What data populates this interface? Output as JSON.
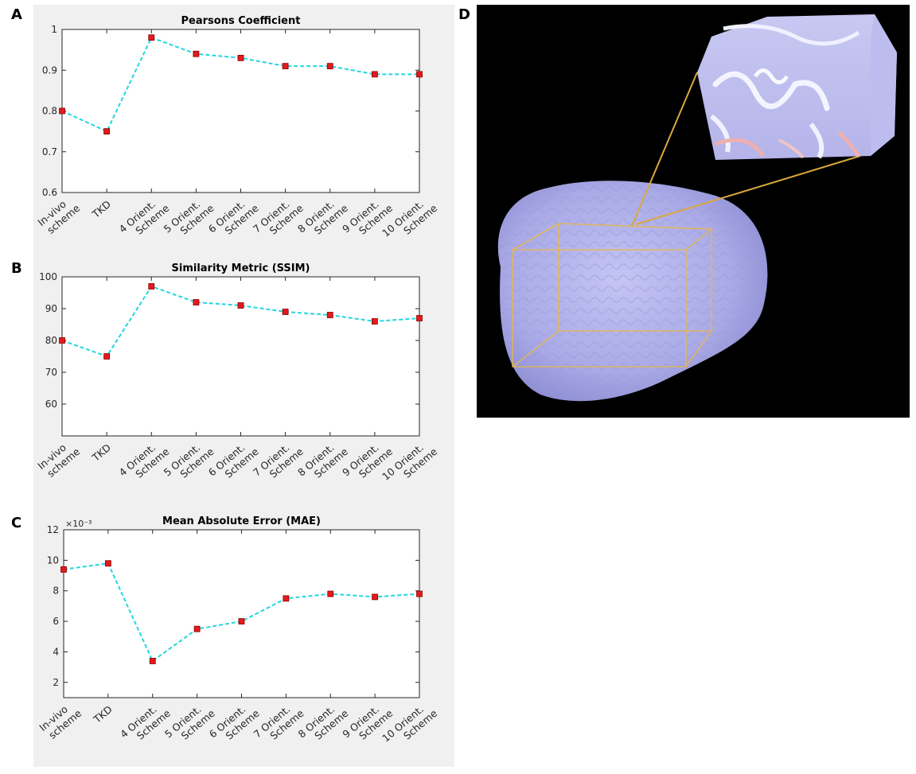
{
  "figure": {
    "panel_labels": [
      "A",
      "B",
      "C",
      "D"
    ]
  },
  "chart_data": [
    {
      "type": "line",
      "panel": "A",
      "title": "Pearsons Coefficient",
      "categories": [
        "In-vivo\nscheme",
        "TKD",
        "4 Orient.\nScheme",
        "5 Orient.\nScheme",
        "6 Orient.\nScheme",
        "7 Orient.\nScheme",
        "8 Orient.\nScheme",
        "9 Orient.\nScheme",
        "10 Orient.\nScheme"
      ],
      "values": [
        0.8,
        0.75,
        0.98,
        0.94,
        0.93,
        0.91,
        0.91,
        0.89,
        0.89
      ],
      "ylim": [
        0.6,
        1.0
      ],
      "yticks": [
        0.6,
        0.7,
        0.8,
        0.9,
        1.0
      ],
      "ytick_labels": [
        "0.6",
        "0.7",
        "0.8",
        "0.9",
        "1"
      ],
      "exponent_label": "",
      "line_color": "#22d6e0",
      "marker_color": "#e41a1c",
      "grid": false
    },
    {
      "type": "line",
      "panel": "B",
      "title": "Similarity Metric (SSIM)",
      "categories": [
        "In-vivo\nscheme",
        "TKD",
        "4 Orient.\nScheme",
        "5 Orient.\nScheme",
        "6 Orient.\nScheme",
        "7 Orient.\nScheme",
        "8 Orient.\nScheme",
        "9 Orient.\nScheme",
        "10 Orient.\nScheme"
      ],
      "values": [
        80,
        75,
        97,
        92,
        91,
        89,
        88,
        86,
        87
      ],
      "ylim": [
        50,
        100
      ],
      "yticks": [
        60,
        70,
        80,
        90,
        100
      ],
      "ytick_labels": [
        "60",
        "70",
        "80",
        "90",
        "100"
      ],
      "exponent_label": "",
      "line_color": "#22d6e0",
      "marker_color": "#e41a1c",
      "grid": false
    },
    {
      "type": "line",
      "panel": "C",
      "title": "Mean Absolute Error (MAE)",
      "categories": [
        "In-vivo\nscheme",
        "TKD",
        "4 Orient.\nScheme",
        "5 Orient.\nScheme",
        "6 Orient.\nScheme",
        "7 Orient.\nScheme",
        "8 Orient.\nScheme",
        "9 Orient.\nScheme",
        "10 Orient.\nScheme"
      ],
      "values": [
        9.4,
        9.8,
        3.4,
        5.5,
        6.0,
        7.5,
        7.8,
        7.6,
        7.8
      ],
      "ylim": [
        1,
        12
      ],
      "yticks": [
        2,
        4,
        6,
        8,
        10,
        12
      ],
      "ytick_labels": [
        "2",
        "4",
        "6",
        "8",
        "10",
        "12"
      ],
      "exponent_label": "×10⁻³",
      "line_color": "#22d6e0",
      "marker_color": "#e41a1c",
      "grid": false
    }
  ],
  "image_panel": {
    "panel": "D",
    "background": "#000000",
    "brain_color": "#b8b8f0",
    "box_color": "#e6b84c"
  }
}
